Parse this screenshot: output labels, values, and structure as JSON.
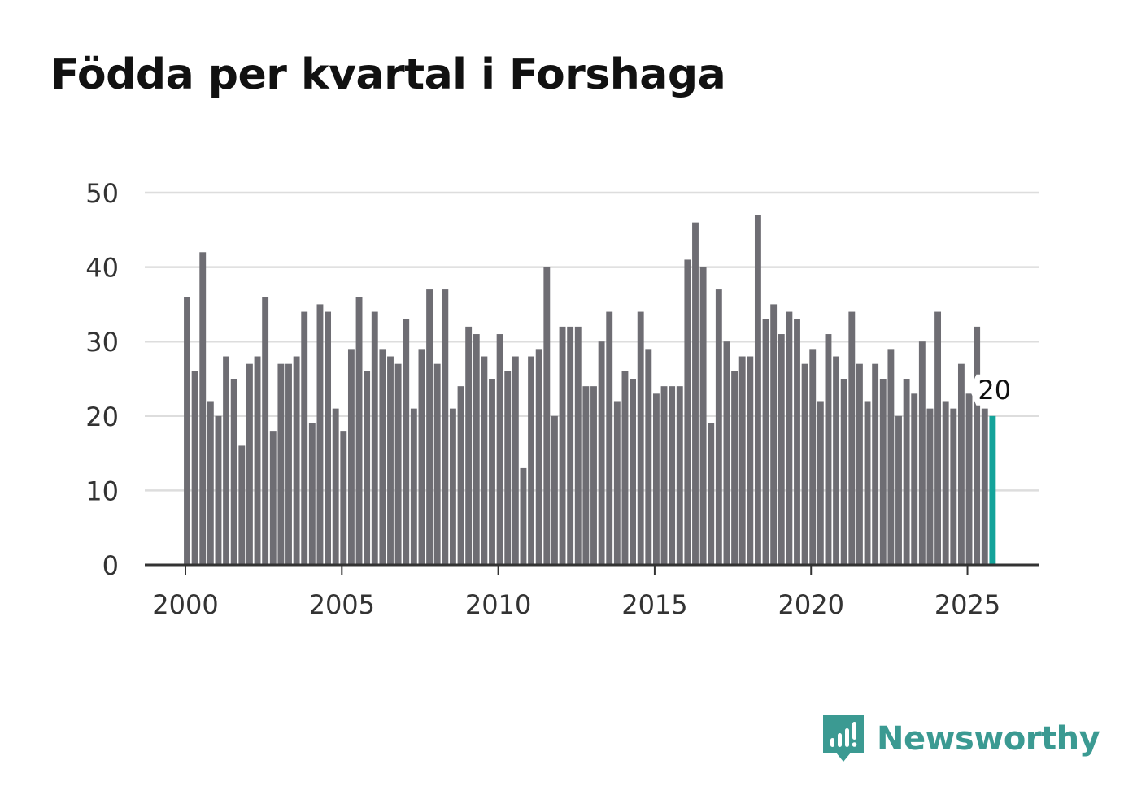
{
  "chart_data": {
    "type": "bar",
    "title": "Födda per kvartal i Forshaga",
    "xlabel": "",
    "ylabel": "",
    "x_start": 2000,
    "x_step": 0.25,
    "values": [
      36,
      26,
      42,
      22,
      20,
      28,
      25,
      16,
      27,
      28,
      36,
      18,
      27,
      27,
      28,
      34,
      19,
      35,
      34,
      21,
      18,
      29,
      36,
      26,
      34,
      29,
      28,
      27,
      33,
      21,
      29,
      37,
      27,
      37,
      21,
      24,
      32,
      31,
      28,
      25,
      31,
      26,
      28,
      13,
      28,
      29,
      40,
      20,
      32,
      32,
      32,
      24,
      24,
      30,
      34,
      22,
      26,
      25,
      34,
      29,
      23,
      24,
      24,
      24,
      41,
      46,
      40,
      19,
      37,
      30,
      26,
      28,
      28,
      47,
      33,
      35,
      31,
      34,
      33,
      27,
      29,
      22,
      31,
      28,
      25,
      34,
      27,
      22,
      27,
      25,
      29,
      20,
      25,
      23,
      30,
      21,
      34,
      22,
      21,
      27,
      23,
      32,
      21,
      20
    ],
    "ylim": [
      0,
      50
    ],
    "yticks": [
      0,
      10,
      20,
      30,
      40,
      50
    ],
    "xticks": [
      2000,
      2005,
      2010,
      2015,
      2020,
      2025
    ],
    "xlim": [
      1998.7,
      2027.3
    ],
    "bar_color": "#6e6d73",
    "highlight_color": "#14a39a",
    "grid": true,
    "annotation": {
      "label": "20",
      "index": 103
    }
  },
  "brand": {
    "name": "Newsworthy",
    "color": "#3b9a92"
  }
}
